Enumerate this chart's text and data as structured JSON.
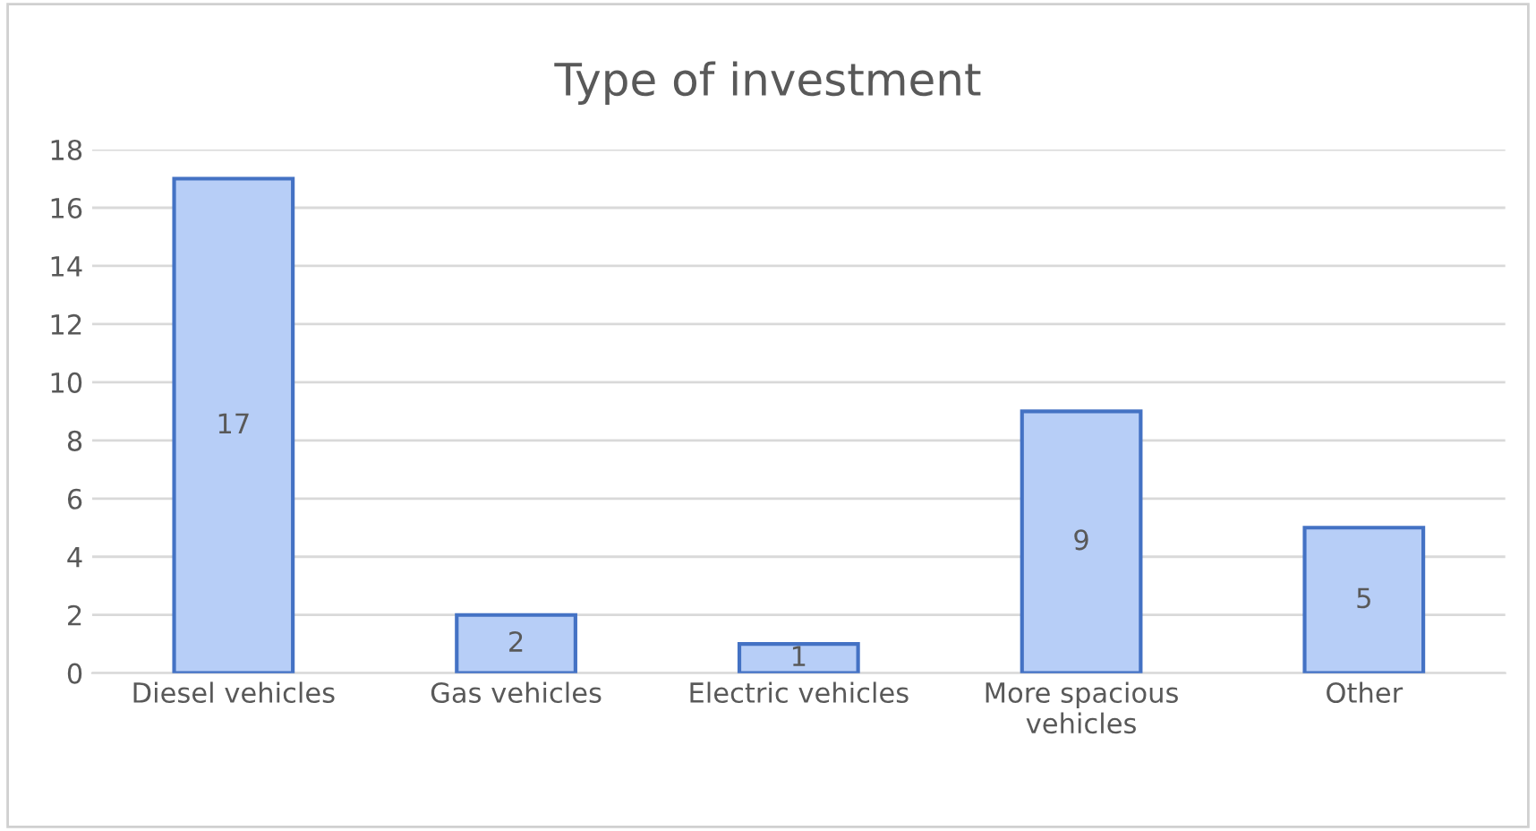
{
  "chart_data": {
    "type": "bar",
    "title": "Type of investment",
    "categories": [
      "Diesel vehicles",
      "Gas vehicles",
      "Electric vehicles",
      "More spacious\nvehicles",
      "Other"
    ],
    "values": [
      17,
      2,
      1,
      9,
      5
    ],
    "color": "#b7cef7",
    "ylim": [
      0,
      18
    ],
    "yticks": [
      0,
      2,
      4,
      6,
      8,
      10,
      12,
      14,
      16,
      18
    ],
    "grid": "y",
    "data_labels": true
  }
}
